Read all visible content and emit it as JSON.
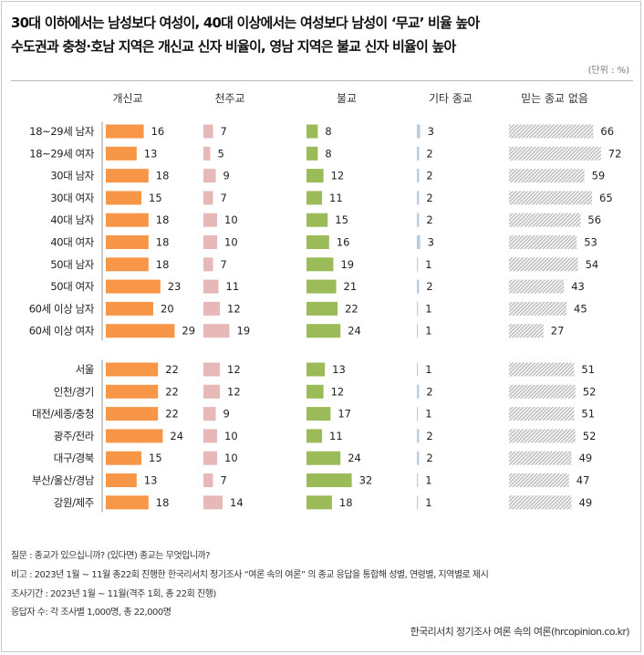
{
  "header": {
    "title_line1": "30대 이하에서는 남성보다 여성이, 40대 이상에서는 여성보다 남성이 ‘무교’ 비율 높아",
    "title_line2": "수도권과 충청·호남 지역은 개신교 신자 비율이, 영남 지역은 불교 신자 비율이 높아",
    "unit": "(단위 : %)"
  },
  "chart_data": {
    "type": "bar",
    "layout": "small-multiples-horizontal",
    "title": "30대 이하에서는 남성보다 여성이, 40대 이상에서는 여성보다 남성이 ‘무교’ 비율 높아 / 수도권과 충청·호남 지역은 개신교 신자 비율이, 영남 지역은 불교 신자 비율이 높아",
    "unit": "%",
    "categories": [
      "18~29세 남자",
      "18~29세 여자",
      "30대 남자",
      "30대 여자",
      "40대 남자",
      "40대 여자",
      "50대 남자",
      "50대 여자",
      "60세 이상 남자",
      "60세 이상 여자",
      "서울",
      "인천/경기",
      "대전/세종/충청",
      "광주/전라",
      "대구/경북",
      "부산/울산/경남",
      "강원/제주"
    ],
    "groups": [
      {
        "name": "age_sex",
        "size": 10
      },
      {
        "name": "region",
        "size": 7
      }
    ],
    "series": [
      {
        "name": "개신교",
        "color": "#f79646",
        "values": [
          16,
          13,
          18,
          15,
          18,
          18,
          18,
          23,
          20,
          29,
          22,
          22,
          22,
          24,
          15,
          13,
          18
        ]
      },
      {
        "name": "천주교",
        "color": "#e6b8b7",
        "values": [
          7,
          5,
          9,
          7,
          10,
          10,
          7,
          11,
          12,
          19,
          12,
          12,
          9,
          10,
          10,
          7,
          14
        ]
      },
      {
        "name": "불교",
        "color": "#9bbb59",
        "values": [
          8,
          8,
          12,
          11,
          15,
          16,
          19,
          21,
          22,
          24,
          13,
          12,
          17,
          11,
          24,
          32,
          18
        ]
      },
      {
        "name": "기타 종교",
        "color": "#b8cce4",
        "values": [
          3,
          2,
          2,
          2,
          2,
          3,
          1,
          2,
          1,
          1,
          1,
          2,
          1,
          2,
          2,
          1,
          1
        ]
      },
      {
        "name": "믿는 종교 없음",
        "color": "#bfbfbf",
        "pattern": "hatched",
        "values": [
          66,
          72,
          59,
          65,
          56,
          53,
          54,
          43,
          45,
          27,
          51,
          52,
          51,
          52,
          49,
          47,
          49
        ]
      }
    ]
  },
  "footer": {
    "question": "질문 : 종교가 있으십니까? (있다면) 종교는 무엇입니까?",
    "note": "비고 : 2023년 1월 ~ 11월 총22회 진행한 한국리서치 정기조사 “여론 속의 여론” 의 종교 응답을 통합해 성별, 연령별, 지역별로 제시",
    "period": "조사기간 : 2023년 1월 ~ 11월(격주 1회, 총 22회 진행)",
    "respondents": "응답자 수: 각 조사별 1,000명, 총 22,000명",
    "source": "한국리서치 정기조사 여론 속의 여론(hrcopinion.co.kr)"
  }
}
